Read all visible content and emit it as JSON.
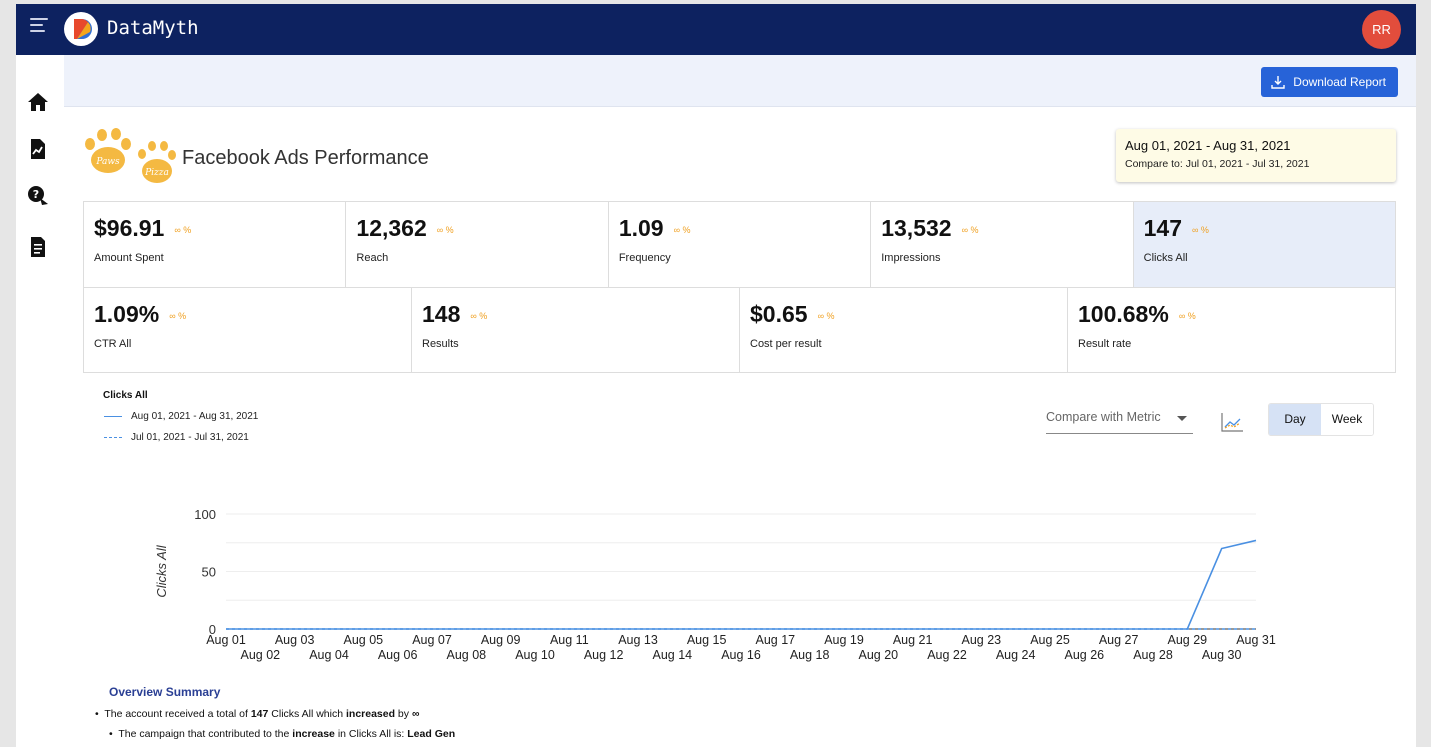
{
  "app": {
    "name": "DataMyth",
    "user_initials": "RR"
  },
  "actions": {
    "download_label": "Download Report"
  },
  "header": {
    "title": "Facebook Ads Performance",
    "logo_text_1": "Paws",
    "logo_text_2": "Pizza",
    "date_range": "Aug 01, 2021 - Aug 31, 2021",
    "compare_range": "Compare to: Jul 01, 2021 - Jul 31, 2021"
  },
  "kpis_row1": [
    {
      "value": "$96.91",
      "change": "∞ %",
      "label": "Amount Spent"
    },
    {
      "value": "12,362",
      "change": "∞ %",
      "label": "Reach"
    },
    {
      "value": "1.09",
      "change": "∞ %",
      "label": "Frequency"
    },
    {
      "value": "13,532",
      "change": "∞ %",
      "label": "Impressions"
    },
    {
      "value": "147",
      "change": "∞ %",
      "label": "Clicks All"
    }
  ],
  "kpis_row2": [
    {
      "value": "1.09%",
      "change": "∞ %",
      "label": "CTR All"
    },
    {
      "value": "148",
      "change": "∞ %",
      "label": "Results"
    },
    {
      "value": "$0.65",
      "change": "∞ %",
      "label": "Cost per result"
    },
    {
      "value": "100.68%",
      "change": "∞ %",
      "label": "Result rate"
    }
  ],
  "chart_controls": {
    "compare_placeholder": "Compare with Metric",
    "toggle_day": "Day",
    "toggle_week": "Week"
  },
  "chart_data": {
    "type": "line",
    "title": "Clicks All",
    "ylabel": "Clicks All",
    "ylim": [
      0,
      100
    ],
    "yticks": [
      0,
      50,
      100
    ],
    "x": [
      "Aug 01",
      "Aug 02",
      "Aug 03",
      "Aug 04",
      "Aug 05",
      "Aug 06",
      "Aug 07",
      "Aug 08",
      "Aug 09",
      "Aug 10",
      "Aug 11",
      "Aug 12",
      "Aug 13",
      "Aug 14",
      "Aug 15",
      "Aug 16",
      "Aug 17",
      "Aug 18",
      "Aug 19",
      "Aug 20",
      "Aug 21",
      "Aug 22",
      "Aug 23",
      "Aug 24",
      "Aug 25",
      "Aug 26",
      "Aug 27",
      "Aug 28",
      "Aug 29",
      "Aug 30",
      "Aug 31"
    ],
    "series": [
      {
        "name": "Aug 01, 2021 - Aug 31, 2021",
        "style": "solid",
        "values": [
          0,
          0,
          0,
          0,
          0,
          0,
          0,
          0,
          0,
          0,
          0,
          0,
          0,
          0,
          0,
          0,
          0,
          0,
          0,
          0,
          0,
          0,
          0,
          0,
          0,
          0,
          0,
          0,
          0,
          70,
          77
        ]
      },
      {
        "name": "Jul 01, 2021 - Jul 31, 2021",
        "style": "dashed",
        "values": [
          0,
          0,
          0,
          0,
          0,
          0,
          0,
          0,
          0,
          0,
          0,
          0,
          0,
          0,
          0,
          0,
          0,
          0,
          0,
          0,
          0,
          0,
          0,
          0,
          0,
          0,
          0,
          0,
          0,
          0,
          0
        ]
      }
    ],
    "colors": {
      "line": "#4a90e2",
      "grid": "#eeeeee"
    },
    "grid": true,
    "legend": "top-left"
  },
  "summary": {
    "title": "Overview Summary",
    "line1_pre": "The account received a total of ",
    "line1_value": "147",
    "line1_mid": " Clicks All which ",
    "line1_dir": "increased",
    "line1_by": " by ",
    "line1_amt": "∞",
    "line2_pre": "The campaign that contributed to the ",
    "line2_dir": "increase",
    "line2_mid": " in Clicks All is: ",
    "line2_camp": "Lead Gen"
  }
}
